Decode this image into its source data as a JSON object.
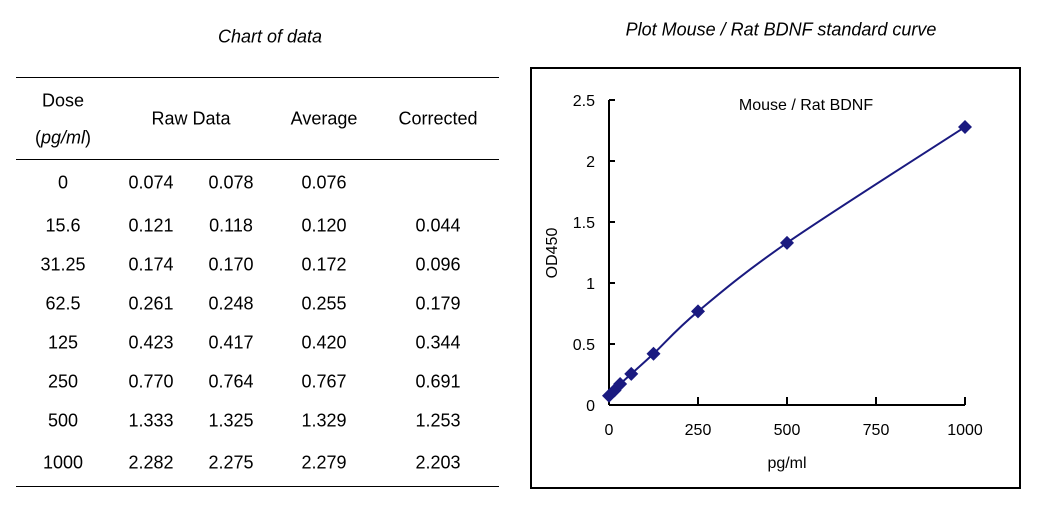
{
  "table": {
    "title": "Chart of data",
    "headers": {
      "dose": "Dose",
      "dose_unit": "pg/ml",
      "raw": "Raw Data",
      "average": "Average",
      "corrected": "Corrected"
    },
    "rows": [
      {
        "dose": "0",
        "raw1": "0.074",
        "raw2": "0.078",
        "average": "0.076",
        "corrected": ""
      },
      {
        "dose": "15.6",
        "raw1": "0.121",
        "raw2": "0.118",
        "average": "0.120",
        "corrected": "0.044"
      },
      {
        "dose": "31.25",
        "raw1": "0.174",
        "raw2": "0.170",
        "average": "0.172",
        "corrected": "0.096"
      },
      {
        "dose": "62.5",
        "raw1": "0.261",
        "raw2": "0.248",
        "average": "0.255",
        "corrected": "0.179"
      },
      {
        "dose": "125",
        "raw1": "0.423",
        "raw2": "0.417",
        "average": "0.420",
        "corrected": "0.344"
      },
      {
        "dose": "250",
        "raw1": "0.770",
        "raw2": "0.764",
        "average": "0.767",
        "corrected": "0.691"
      },
      {
        "dose": "500",
        "raw1": "1.333",
        "raw2": "1.325",
        "average": "1.329",
        "corrected": "1.253"
      },
      {
        "dose": "1000",
        "raw1": "2.282",
        "raw2": "2.275",
        "average": "2.279",
        "corrected": "2.203"
      }
    ]
  },
  "chart_data": {
    "type": "scatter",
    "page_title": "Plot Mouse / Rat BDNF standard curve",
    "title": "Mouse / Rat BDNF",
    "xlabel": "pg/ml",
    "ylabel": "OD450",
    "xlim": [
      0,
      1000
    ],
    "ylim": [
      0,
      2.5
    ],
    "xticks": [
      "0",
      "250",
      "500",
      "750",
      "1000"
    ],
    "yticks": [
      "0",
      "0.5",
      "1",
      "1.5",
      "2",
      "2.5"
    ],
    "grid": false,
    "marker": "diamond",
    "fit_line": "smooth curve",
    "color": "#1a1a80",
    "series": [
      {
        "x": [
          0,
          15.6,
          31.25,
          62.5,
          125,
          250,
          500,
          1000
        ],
        "y": [
          0.076,
          0.12,
          0.172,
          0.255,
          0.42,
          0.767,
          1.329,
          2.279
        ]
      }
    ]
  }
}
